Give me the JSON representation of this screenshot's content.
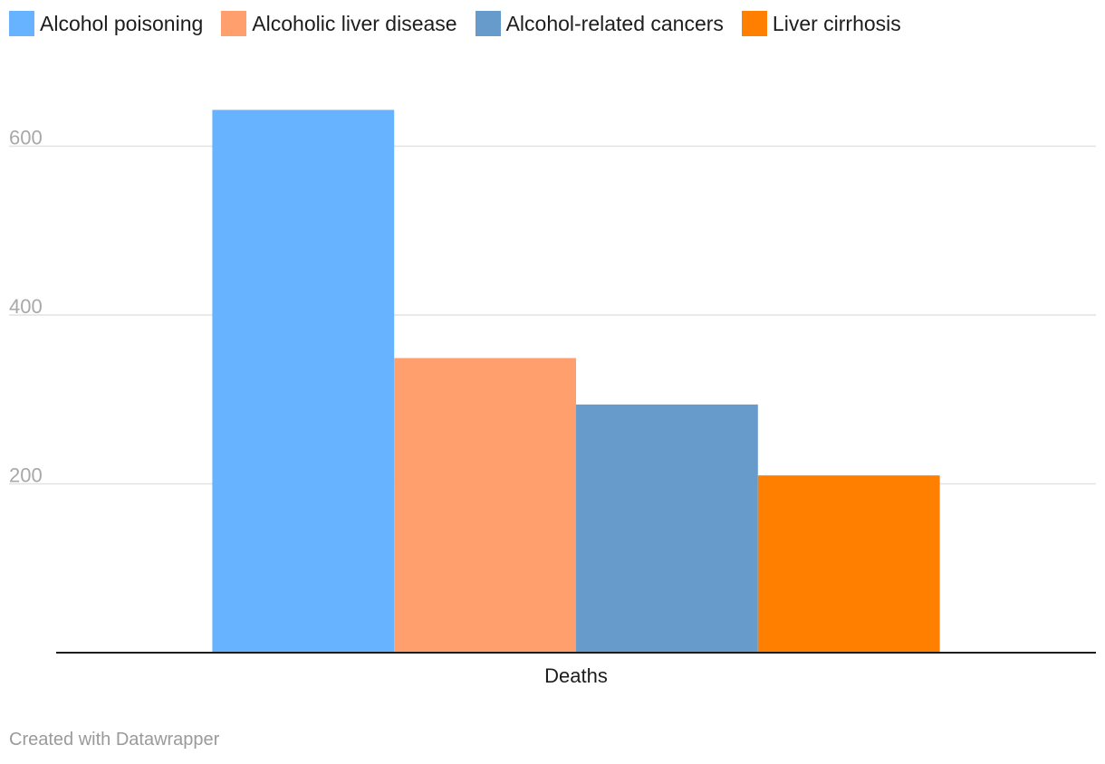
{
  "chart_data": {
    "type": "bar",
    "categories": [
      "Deaths"
    ],
    "series": [
      {
        "name": "Alcohol poisoning",
        "color": "#67b3ff",
        "values": [
          643
        ]
      },
      {
        "name": "Alcoholic liver disease",
        "color": "#ff9f6e",
        "values": [
          349
        ]
      },
      {
        "name": "Alcohol-related cancers",
        "color": "#669bcb",
        "values": [
          294
        ]
      },
      {
        "name": "Liver cirrhosis",
        "color": "#ff7f00",
        "values": [
          210
        ]
      }
    ],
    "yticks": [
      200,
      400,
      600
    ],
    "ylim": [
      0,
      700
    ],
    "grid": true,
    "legend_position": "top-left"
  },
  "credit": "Created with Datawrapper"
}
